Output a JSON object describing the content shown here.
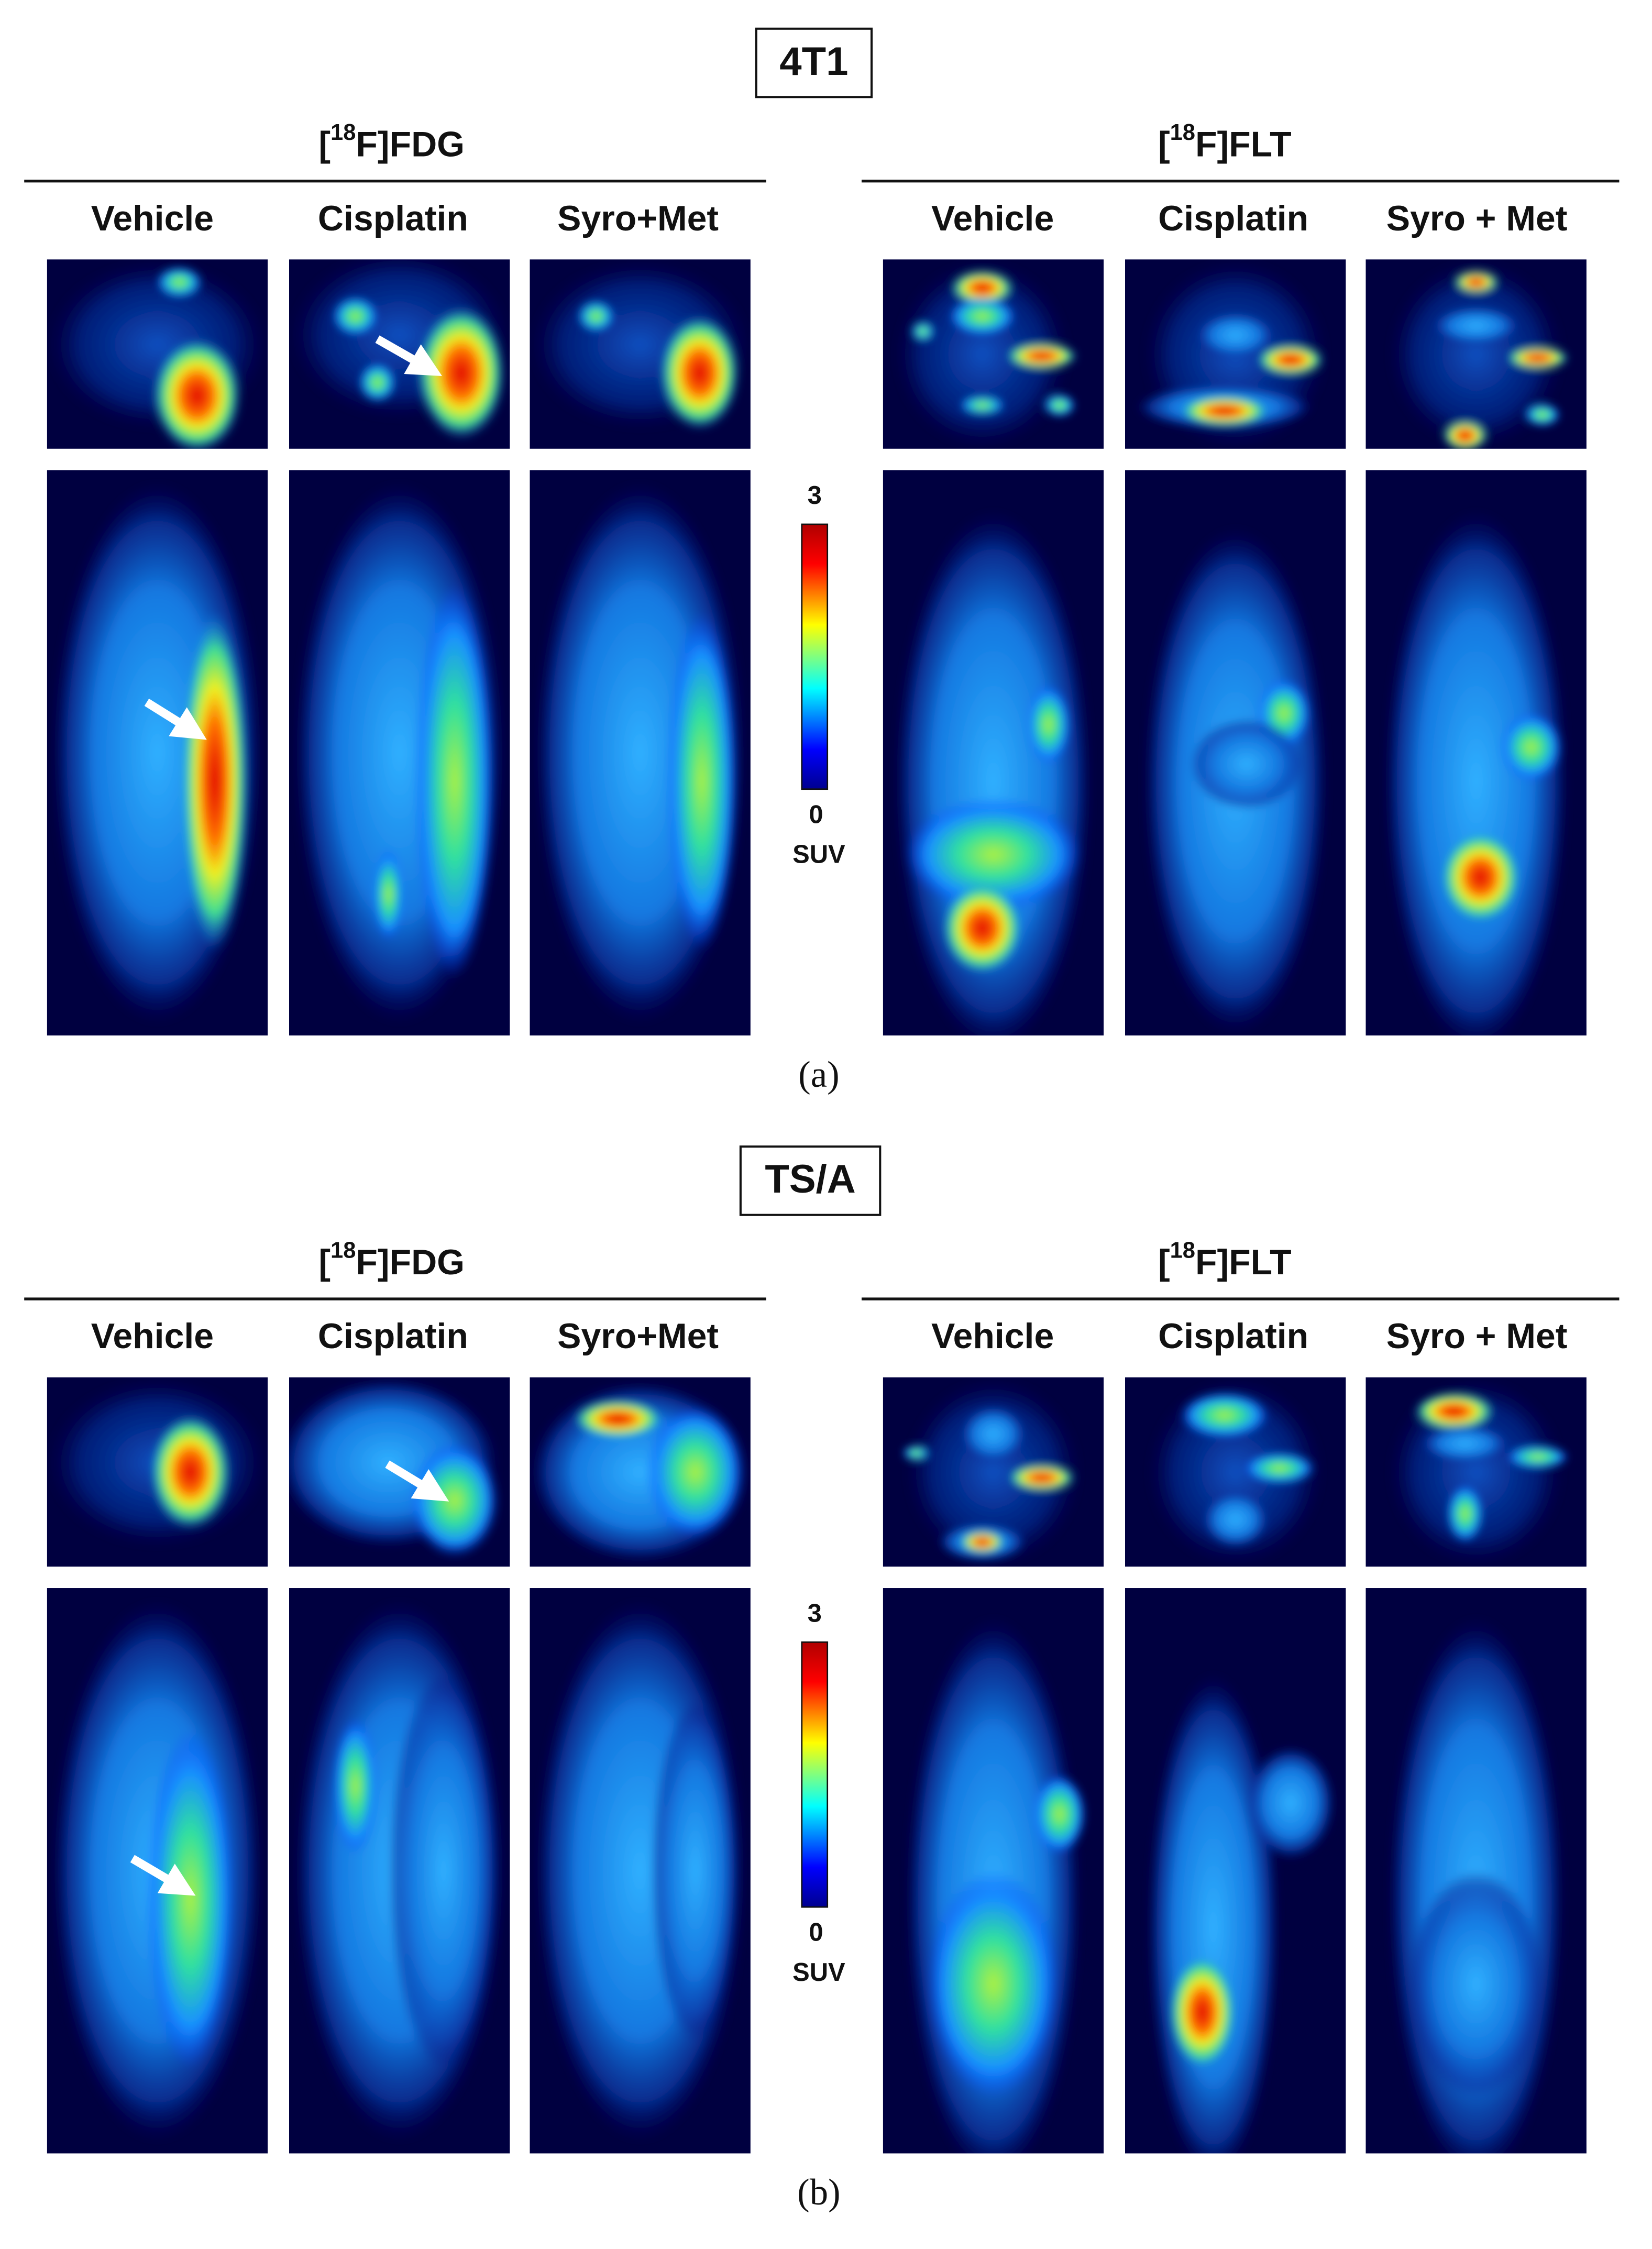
{
  "panels": [
    {
      "label": "4T1",
      "caption": "(a)",
      "groups": [
        {
          "tracer": {
            "open": "[",
            "mass": "18",
            "rest": "F]FDG"
          },
          "columns": [
            "Vehicle",
            "Cisplatin",
            "Syro+Met"
          ]
        },
        {
          "tracer": {
            "open": "[",
            "mass": "18",
            "rest": "F]FLT"
          },
          "columns": [
            "Vehicle",
            "Cisplatin",
            "Syro + Met"
          ]
        }
      ],
      "colorbar": {
        "max": "3",
        "min": "0",
        "unit": "SUV"
      }
    },
    {
      "label": "TS/A",
      "caption": "(b)",
      "groups": [
        {
          "tracer": {
            "open": "[",
            "mass": "18",
            "rest": "F]FDG"
          },
          "columns": [
            "Vehicle",
            "Cisplatin",
            "Syro+Met"
          ]
        },
        {
          "tracer": {
            "open": "[",
            "mass": "18",
            "rest": "F]FLT"
          },
          "columns": [
            "Vehicle",
            "Cisplatin",
            "Syro + Met"
          ]
        }
      ],
      "colorbar": {
        "max": "3",
        "min": "0",
        "unit": "SUV"
      }
    }
  ]
}
